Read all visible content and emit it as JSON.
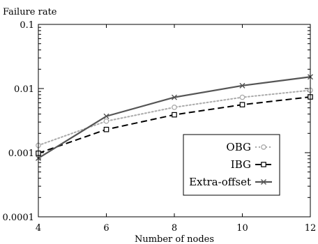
{
  "chart_data": {
    "type": "line",
    "title": "",
    "ylabel": "Failure rate",
    "xlabel": "Number of nodes",
    "x": [
      4,
      6,
      8,
      10,
      12
    ],
    "xlim": [
      4,
      12
    ],
    "ylim": [
      0.0001,
      0.1
    ],
    "yscale": "log",
    "x_ticks": [
      4,
      6,
      8,
      10,
      12
    ],
    "x_tick_labels": [
      "4",
      "6",
      "8",
      "10",
      "12"
    ],
    "y_ticks": [
      0.0001,
      0.001,
      0.01,
      0.1
    ],
    "y_tick_labels": [
      "0.0001",
      "0.001",
      "0.01",
      "0.1"
    ],
    "grid": false,
    "legend_position": "bottom-right",
    "series": [
      {
        "name": "OBG",
        "values": [
          0.0013,
          0.0031,
          0.0051,
          0.0073,
          0.0094
        ],
        "color": "#aaaaaa",
        "line_style": "dotted",
        "marker": "circle"
      },
      {
        "name": "IBG",
        "values": [
          0.00098,
          0.0023,
          0.0039,
          0.0056,
          0.0074
        ],
        "color": "#000000",
        "line_style": "dashed",
        "marker": "square"
      },
      {
        "name": "Extra-offset",
        "values": [
          0.00082,
          0.0037,
          0.0073,
          0.0111,
          0.0152
        ],
        "color": "#555555",
        "line_style": "solid",
        "marker": "x"
      }
    ]
  }
}
